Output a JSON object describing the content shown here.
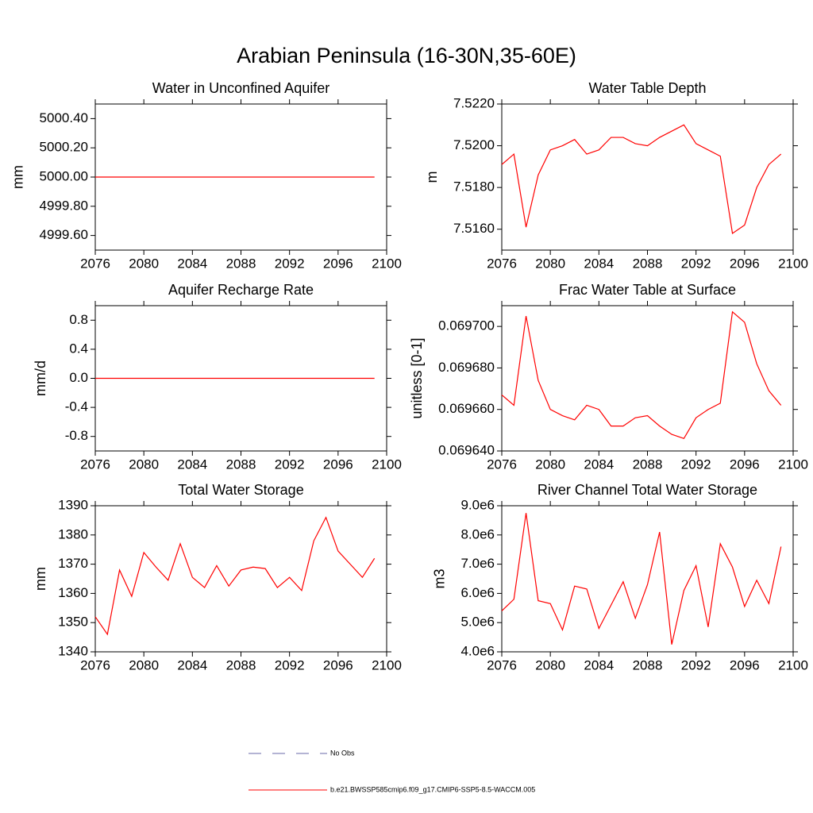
{
  "title": "Arabian Peninsula (16-30N,35-60E)",
  "legend": [
    {
      "name": "No Obs",
      "color": "#6a6aa8",
      "dash": true
    },
    {
      "name": "b.e21.BWSSP585cmip6.f09_g17.CMIP6-SSP5-8.5-WACCM.005",
      "color": "#ff0000",
      "dash": false
    }
  ],
  "chart_data": [
    {
      "type": "line",
      "title": "Water in Unconfined Aquifer",
      "y_label": "mm",
      "color": "#ff0000",
      "x": [
        2076,
        2077,
        2078,
        2079,
        2080,
        2081,
        2082,
        2083,
        2084,
        2085,
        2086,
        2087,
        2088,
        2089,
        2090,
        2091,
        2092,
        2093,
        2094,
        2095,
        2096,
        2097,
        2098,
        2099
      ],
      "values": [
        5000,
        5000,
        5000,
        5000,
        5000,
        5000,
        5000,
        5000,
        5000,
        5000,
        5000,
        5000,
        5000,
        5000,
        5000,
        5000,
        5000,
        5000,
        5000,
        5000,
        5000,
        5000,
        5000,
        5000
      ],
      "xlim": [
        2076,
        2100
      ],
      "xticks": [
        2076,
        2080,
        2084,
        2088,
        2092,
        2096,
        2100
      ],
      "ylim": [
        4999.5,
        5000.5
      ],
      "yticks": [
        {
          "value": 4999.6,
          "label": "4999.60"
        },
        {
          "value": 4999.8,
          "label": "4999.80"
        },
        {
          "value": 5000.0,
          "label": "5000.00"
        },
        {
          "value": 5000.2,
          "label": "5000.20"
        },
        {
          "value": 5000.4,
          "label": "5000.40"
        }
      ]
    },
    {
      "type": "line",
      "title": "Water Table Depth",
      "y_label": "m",
      "color": "#ff0000",
      "x": [
        2076,
        2077,
        2078,
        2079,
        2080,
        2081,
        2082,
        2083,
        2084,
        2085,
        2086,
        2087,
        2088,
        2089,
        2090,
        2091,
        2092,
        2093,
        2094,
        2095,
        2096,
        2097,
        2098,
        2099
      ],
      "values": [
        7.5191,
        7.5196,
        7.5161,
        7.5186,
        7.5198,
        7.52,
        7.5203,
        7.5196,
        7.5198,
        7.5204,
        7.5204,
        7.5201,
        7.52,
        7.5204,
        7.5207,
        7.521,
        7.5201,
        7.5198,
        7.5195,
        7.5158,
        7.5162,
        7.518,
        7.5191,
        7.5196
      ],
      "xlim": [
        2076,
        2100
      ],
      "xticks": [
        2076,
        2080,
        2084,
        2088,
        2092,
        2096,
        2100
      ],
      "ylim": [
        7.515,
        7.522
      ],
      "yticks": [
        {
          "value": 7.516,
          "label": "7.5160"
        },
        {
          "value": 7.518,
          "label": "7.5180"
        },
        {
          "value": 7.52,
          "label": "7.5200"
        },
        {
          "value": 7.522,
          "label": "7.5220"
        }
      ]
    },
    {
      "type": "line",
      "title": "Aquifer Recharge Rate",
      "y_label": "mm/d",
      "color": "#ff0000",
      "x": [
        2076,
        2077,
        2078,
        2079,
        2080,
        2081,
        2082,
        2083,
        2084,
        2085,
        2086,
        2087,
        2088,
        2089,
        2090,
        2091,
        2092,
        2093,
        2094,
        2095,
        2096,
        2097,
        2098,
        2099
      ],
      "values": [
        0,
        0,
        0,
        0,
        0,
        0,
        0,
        0,
        0,
        0,
        0,
        0,
        0,
        0,
        0,
        0,
        0,
        0,
        0,
        0,
        0,
        0,
        0,
        0
      ],
      "xlim": [
        2076,
        2100
      ],
      "xticks": [
        2076,
        2080,
        2084,
        2088,
        2092,
        2096,
        2100
      ],
      "ylim": [
        -1,
        1
      ],
      "yticks": [
        -0.8,
        -0.4,
        {
          "value": 0,
          "label": "0.0"
        },
        0.4,
        0.8
      ]
    },
    {
      "type": "line",
      "title": "Frac Water Table at Surface",
      "y_label": "unitless [0-1]",
      "color": "#ff0000",
      "x": [
        2076,
        2077,
        2078,
        2079,
        2080,
        2081,
        2082,
        2083,
        2084,
        2085,
        2086,
        2087,
        2088,
        2089,
        2090,
        2091,
        2092,
        2093,
        2094,
        2095,
        2096,
        2097,
        2098,
        2099
      ],
      "values": [
        0.069667,
        0.069662,
        0.069705,
        0.069674,
        0.06966,
        0.069657,
        0.069655,
        0.069662,
        0.06966,
        0.069652,
        0.069652,
        0.069656,
        0.069657,
        0.069652,
        0.069648,
        0.069646,
        0.069656,
        0.06966,
        0.069663,
        0.069707,
        0.069702,
        0.069682,
        0.069669,
        0.069662
      ],
      "xlim": [
        2076,
        2100
      ],
      "xticks": [
        2076,
        2080,
        2084,
        2088,
        2092,
        2096,
        2100
      ],
      "ylim": [
        0.06964,
        0.06971
      ],
      "yticks": [
        {
          "value": 0.06964,
          "label": "0.069640"
        },
        {
          "value": 0.06966,
          "label": "0.069660"
        },
        {
          "value": 0.06968,
          "label": "0.069680"
        },
        {
          "value": 0.0697,
          "label": "0.069700"
        }
      ]
    },
    {
      "type": "line",
      "title": "Total Water Storage",
      "y_label": "mm",
      "color": "#ff0000",
      "x": [
        2076,
        2077,
        2078,
        2079,
        2080,
        2081,
        2082,
        2083,
        2084,
        2085,
        2086,
        2087,
        2088,
        2089,
        2090,
        2091,
        2092,
        2093,
        2094,
        2095,
        2096,
        2097,
        2098,
        2099
      ],
      "values": [
        1352,
        1346,
        1368,
        1359,
        1374,
        1369,
        1364.5,
        1377,
        1365.5,
        1362,
        1369.5,
        1362.5,
        1368,
        1369,
        1368.5,
        1362,
        1365.5,
        1361,
        1378,
        1386,
        1374.5,
        1370,
        1365.5,
        1372
      ],
      "xlim": [
        2076,
        2100
      ],
      "xticks": [
        2076,
        2080,
        2084,
        2088,
        2092,
        2096,
        2100
      ],
      "ylim": [
        1340,
        1390
      ],
      "yticks": [
        1340,
        1350,
        1360,
        1370,
        1380,
        1390
      ]
    },
    {
      "type": "line",
      "title": "River Channel Total Water Storage",
      "y_label": "m3",
      "color": "#ff0000",
      "x": [
        2076,
        2077,
        2078,
        2079,
        2080,
        2081,
        2082,
        2083,
        2084,
        2085,
        2086,
        2087,
        2088,
        2089,
        2090,
        2091,
        2092,
        2093,
        2094,
        2095,
        2096,
        2097,
        2098,
        2099
      ],
      "values": [
        5400000,
        5800000,
        8750000,
        5750000,
        5650000,
        4750000,
        6250000,
        6150000,
        4800000,
        5600000,
        6400000,
        5150000,
        6300000,
        8100000,
        4250000,
        6100000,
        6950000,
        4850000,
        7700000,
        6900000,
        5550000,
        6450000,
        5650000,
        7600000
      ],
      "xlim": [
        2076,
        2100
      ],
      "xticks": [
        2076,
        2080,
        2084,
        2088,
        2092,
        2096,
        2100
      ],
      "ylim": [
        4000000,
        9000000
      ],
      "yticks": [
        {
          "value": 4000000,
          "label": "4.0e6"
        },
        {
          "value": 5000000,
          "label": "5.0e6"
        },
        {
          "value": 6000000,
          "label": "6.0e6"
        },
        {
          "value": 7000000,
          "label": "7.0e6"
        },
        {
          "value": 8000000,
          "label": "8.0e6"
        },
        {
          "value": 9000000,
          "label": "9.0e6"
        }
      ]
    }
  ]
}
